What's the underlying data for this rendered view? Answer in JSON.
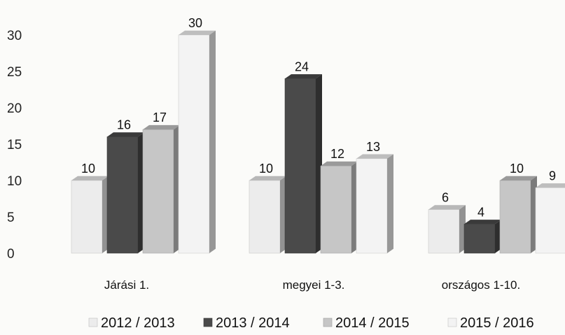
{
  "chart_data": {
    "type": "bar",
    "categories": [
      "Járási 1.",
      "megyei 1-3.",
      "országos 1-10."
    ],
    "series": [
      {
        "name": "2012 / 2013",
        "values": [
          10,
          10,
          6
        ],
        "color": "#ececec"
      },
      {
        "name": "2013 / 2014",
        "values": [
          16,
          24,
          4
        ],
        "color": "#4a4a4a"
      },
      {
        "name": "2014 / 2015",
        "values": [
          17,
          12,
          10
        ],
        "color": "#c6c6c6"
      },
      {
        "name": "2015 / 2016",
        "values": [
          30,
          13,
          9
        ],
        "color": "#f3f3f3"
      }
    ],
    "y_ticks": [
      "0",
      "5",
      "10",
      "15",
      "20",
      "25",
      "30"
    ],
    "ylim": [
      0,
      30
    ],
    "grid": false,
    "legend_position": "bottom",
    "title": "",
    "xlabel": "",
    "ylabel": ""
  }
}
